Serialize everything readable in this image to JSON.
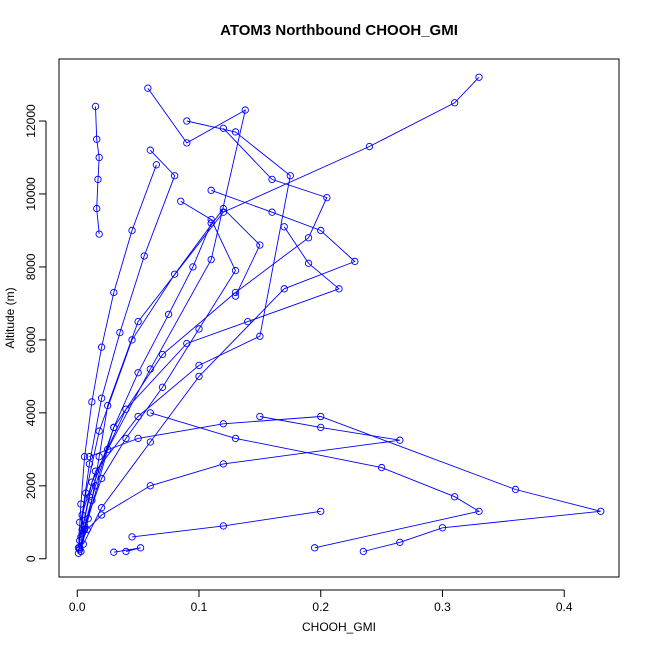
{
  "chart_data": {
    "type": "scatter",
    "title": "ATOM3 Northbound CHOOH_GMI",
    "xlabel": "CHOOH_GMI",
    "ylabel": "Altitude (m)",
    "xlim": [
      -0.015,
      0.445
    ],
    "ylim": [
      -500,
      13700
    ],
    "x_ticks": [
      0.0,
      0.1,
      0.2,
      0.3,
      0.4
    ],
    "x_tick_labels": [
      "0.0",
      "0.1",
      "0.2",
      "0.3",
      "0.4"
    ],
    "y_ticks": [
      0,
      2000,
      4000,
      6000,
      8000,
      10000,
      12000
    ],
    "y_tick_labels": [
      "0",
      "2000",
      "4000",
      "6000",
      "8000",
      "10000",
      "12000"
    ],
    "grid": false,
    "legend": "none",
    "color": "#0000ff",
    "marker": "open-circle",
    "connected": true,
    "series": [
      {
        "x": [
          0.003,
          0.006,
          0.012,
          0.018,
          0.025,
          0.05,
          0.12,
          0.24,
          0.31,
          0.33
        ],
        "y": [
          200,
          800,
          1600,
          2800,
          4200,
          6500,
          9500,
          11300,
          12500,
          13200
        ]
      },
      {
        "x": [
          0.235,
          0.265,
          0.3,
          0.43,
          0.36,
          0.2,
          0.12,
          0.05,
          0.01
        ],
        "y": [
          200,
          450,
          850,
          1300,
          1900,
          3900,
          3700,
          3300,
          2800
        ]
      },
      {
        "x": [
          0.195,
          0.33,
          0.31,
          0.25,
          0.13,
          0.06
        ],
        "y": [
          300,
          1300,
          1700,
          2500,
          3300,
          4000
        ]
      },
      {
        "x": [
          0.002,
          0.008,
          0.02,
          0.06,
          0.12,
          0.265,
          0.2,
          0.15
        ],
        "y": [
          300,
          800,
          1200,
          2000,
          2600,
          3250,
          3600,
          3900
        ]
      },
      {
        "x": [
          0.005,
          0.02,
          0.06,
          0.1,
          0.17,
          0.228,
          0.2,
          0.16,
          0.11
        ],
        "y": [
          400,
          1400,
          3200,
          5000,
          7400,
          8150,
          9000,
          9500,
          10100
        ]
      },
      {
        "x": [
          0.003,
          0.01,
          0.03,
          0.07,
          0.13,
          0.19,
          0.205,
          0.16,
          0.12
        ],
        "y": [
          600,
          1700,
          3600,
          5600,
          7300,
          8800,
          9900,
          10400,
          11800
        ]
      },
      {
        "x": [
          0.004,
          0.012,
          0.04,
          0.09,
          0.14,
          0.215,
          0.19,
          0.17
        ],
        "y": [
          800,
          2100,
          4100,
          5900,
          6500,
          7400,
          8100,
          9100
        ]
      },
      {
        "x": [
          0.002,
          0.015,
          0.05,
          0.1,
          0.15,
          0.175,
          0.13,
          0.09
        ],
        "y": [
          1000,
          2400,
          3900,
          5300,
          6100,
          10500,
          11700,
          12000
        ]
      },
      {
        "x": [
          0.003,
          0.009,
          0.025,
          0.06,
          0.11,
          0.138,
          0.09,
          0.058
        ],
        "y": [
          200,
          1100,
          3000,
          5200,
          8200,
          12300,
          11400,
          12900
        ]
      },
      {
        "x": [
          0.002,
          0.007,
          0.018,
          0.045,
          0.08,
          0.12,
          0.15,
          0.13
        ],
        "y": [
          500,
          1800,
          3500,
          6000,
          7800,
          9600,
          8600,
          7200
        ]
      },
      {
        "x": [
          0.001,
          0.004,
          0.01,
          0.02,
          0.035,
          0.055,
          0.08,
          0.06
        ],
        "y": [
          150,
          1200,
          2600,
          4400,
          6200,
          8300,
          10500,
          11200
        ]
      },
      {
        "x": [
          0.015,
          0.016,
          0.018,
          0.017,
          0.016,
          0.018
        ],
        "y": [
          12400,
          11500,
          11000,
          10400,
          9600,
          8900
        ]
      },
      {
        "x": [
          0.001,
          0.003,
          0.006,
          0.012,
          0.02,
          0.03,
          0.045,
          0.065
        ],
        "y": [
          300,
          1500,
          2800,
          4300,
          5800,
          7300,
          9000,
          10800
        ]
      },
      {
        "x": [
          0.004,
          0.02,
          0.04,
          0.07,
          0.1,
          0.13,
          0.11,
          0.085
        ],
        "y": [
          700,
          2200,
          3300,
          4700,
          6300,
          7900,
          9300,
          9800
        ]
      },
      {
        "x": [
          0.002,
          0.006,
          0.015,
          0.03,
          0.05,
          0.075,
          0.095,
          0.11
        ],
        "y": [
          250,
          900,
          2000,
          3600,
          5100,
          6700,
          8000,
          9200
        ]
      },
      {
        "x": [
          0.045,
          0.12,
          0.2
        ],
        "y": [
          600,
          900,
          1300
        ]
      },
      {
        "x": [
          0.03,
          0.052,
          0.04
        ],
        "y": [
          180,
          300,
          200
        ]
      }
    ]
  }
}
